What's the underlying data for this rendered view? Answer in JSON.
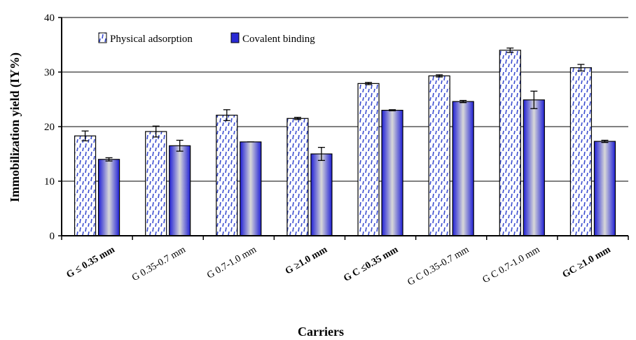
{
  "chart_data": {
    "type": "bar",
    "xlabel": "Carriers",
    "ylabel": "Immobilization yield (IY%)",
    "ylim": [
      0,
      40
    ],
    "yticks": [
      "0",
      "10",
      "20",
      "30",
      "40"
    ],
    "grid": true,
    "legend_position": "top-left",
    "categories": [
      "G ≤ 0.35 mm",
      "G 0.35-0.7 mm",
      "G 0.7-1.0 mm",
      "G ≥1.0 mm",
      "G C ≤0.35 mm",
      "G C 0.35-0.7 mm",
      "G C 0.7-1.0 mm",
      "GC ≥1.0 mm"
    ],
    "bold_categories": [
      true,
      false,
      false,
      true,
      true,
      false,
      false,
      true
    ],
    "series": [
      {
        "name": "Physical adsorption",
        "values": [
          18.3,
          19.1,
          22.1,
          21.5,
          27.9,
          29.3,
          34.0,
          30.8
        ],
        "errors": [
          0.9,
          1.0,
          1.0,
          0.2,
          0.2,
          0.2,
          0.4,
          0.6
        ],
        "color": "#3344cc"
      },
      {
        "name": "Covalent binding",
        "values": [
          14.0,
          16.5,
          17.2,
          15.0,
          23.0,
          24.6,
          24.9,
          17.3
        ],
        "errors": [
          0.3,
          1.0,
          0.0,
          1.2,
          0.1,
          0.2,
          1.6,
          0.2
        ],
        "color": "#2828d8"
      }
    ]
  }
}
